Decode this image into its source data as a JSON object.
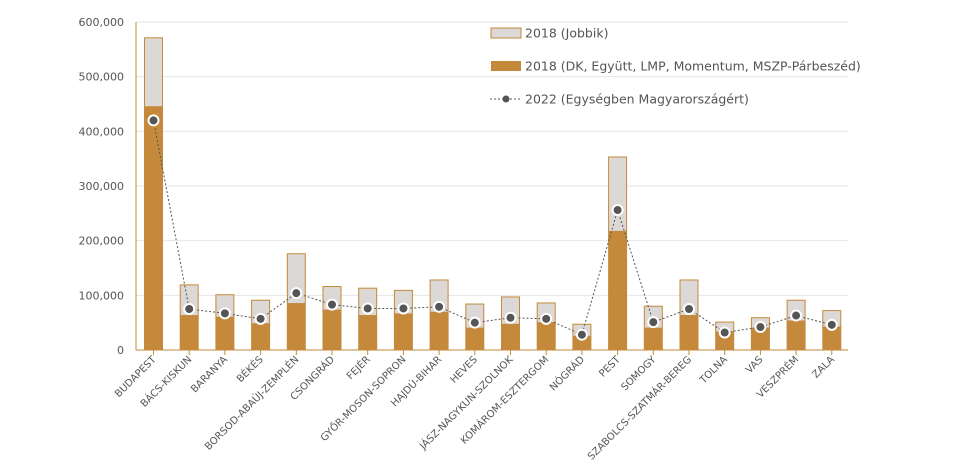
{
  "chart_data": {
    "type": "bar",
    "stacked": true,
    "categories": [
      "BUDAPEST",
      "BÁCS-KISKUN",
      "BARANYA",
      "BÉKÉS",
      "BORSOD-ABAÚJ-ZEMPLÉN",
      "CSONGRÁD",
      "FEJÉR",
      "GYŐR-MOSON-SOPRON",
      "HAJDÚ-BIHAR",
      "HEVES",
      "JÁSZ-NAGYKUN-SZOLNOK",
      "KOMÁROM-ESZTERGOM",
      "NÓGRÁD",
      "PEST",
      "SOMOGY",
      "SZABOLCS-SZATMÁR-BEREG",
      "TOLNA",
      "VAS",
      "VESZPRÉM",
      "ZALA"
    ],
    "series": [
      {
        "name": "2018 (DK, Együtt, LMP, Momentum, MSZP-Párbeszéd)",
        "kind": "bar",
        "color": "#c4893a",
        "values": [
          445000,
          63000,
          60000,
          48000,
          85000,
          73000,
          63000,
          66000,
          69000,
          40000,
          47000,
          50000,
          25000,
          217000,
          40000,
          63000,
          33000,
          40000,
          53000,
          42000
        ]
      },
      {
        "name": "2018 (Jobbik)",
        "kind": "bar",
        "color": "#dcd8d6",
        "values": [
          127000,
          57000,
          42000,
          44000,
          92000,
          44000,
          51000,
          44000,
          60000,
          45000,
          51000,
          37000,
          23000,
          137000,
          41000,
          66000,
          19000,
          20000,
          39000,
          31000
        ]
      },
      {
        "name": "2022 (Egységben Magyarországért)",
        "kind": "line",
        "color": "#555555",
        "values": [
          420000,
          75000,
          67000,
          57000,
          104000,
          83000,
          76000,
          76000,
          79000,
          50000,
          59000,
          57000,
          28000,
          256000,
          51000,
          75000,
          32000,
          42000,
          63000,
          46000
        ]
      }
    ],
    "title": "",
    "xlabel": "",
    "ylabel": "",
    "ylim": [
      0,
      600000
    ],
    "yticks": [
      0,
      100000,
      200000,
      300000,
      400000,
      500000,
      600000
    ],
    "ytick_labels": [
      "0",
      "100,000",
      "200,000",
      "300,000",
      "400,000",
      "500,000",
      "600,000"
    ],
    "grid": true,
    "legend": {
      "position": "top-right",
      "order": [
        1,
        0,
        2
      ]
    }
  }
}
